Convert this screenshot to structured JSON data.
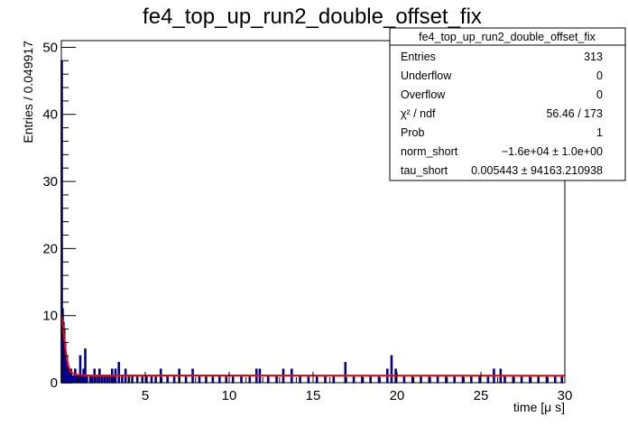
{
  "chart_data": {
    "type": "histogram",
    "title": "fe4_top_up_run2_double_offset_fix",
    "xlabel": "time [μ s]",
    "ylabel": "Entries / 0.049917",
    "xlim": [
      0,
      30
    ],
    "ylim": [
      0,
      51
    ],
    "bin_width": 0.049917,
    "x_ticks": [
      5,
      10,
      15,
      20,
      25,
      30
    ],
    "y_ticks": [
      0,
      10,
      20,
      30,
      40,
      50
    ],
    "grid": false,
    "histogram_color": "#00008b",
    "fit_color": "#ff0000",
    "bins": [
      {
        "x": 0.025,
        "y": 48
      },
      {
        "x": 0.075,
        "y": 11
      },
      {
        "x": 0.125,
        "y": 9
      },
      {
        "x": 0.175,
        "y": 8
      },
      {
        "x": 0.225,
        "y": 6
      },
      {
        "x": 0.275,
        "y": 4
      },
      {
        "x": 0.325,
        "y": 4
      },
      {
        "x": 0.375,
        "y": 3
      },
      {
        "x": 0.425,
        "y": 2
      },
      {
        "x": 0.475,
        "y": 2
      },
      {
        "x": 0.525,
        "y": 1
      },
      {
        "x": 0.575,
        "y": 2
      },
      {
        "x": 0.625,
        "y": 1
      },
      {
        "x": 0.725,
        "y": 1
      },
      {
        "x": 0.825,
        "y": 2
      },
      {
        "x": 0.925,
        "y": 1
      },
      {
        "x": 1.025,
        "y": 1
      },
      {
        "x": 1.125,
        "y": 4
      },
      {
        "x": 1.225,
        "y": 1
      },
      {
        "x": 1.325,
        "y": 2
      },
      {
        "x": 1.425,
        "y": 5
      },
      {
        "x": 1.525,
        "y": 1
      },
      {
        "x": 1.725,
        "y": 1
      },
      {
        "x": 1.825,
        "y": 1
      },
      {
        "x": 1.975,
        "y": 2
      },
      {
        "x": 2.125,
        "y": 1
      },
      {
        "x": 2.275,
        "y": 2
      },
      {
        "x": 2.425,
        "y": 1
      },
      {
        "x": 2.575,
        "y": 1
      },
      {
        "x": 2.725,
        "y": 1
      },
      {
        "x": 2.875,
        "y": 1
      },
      {
        "x": 3.025,
        "y": 2
      },
      {
        "x": 3.125,
        "y": 1
      },
      {
        "x": 3.225,
        "y": 2
      },
      {
        "x": 3.425,
        "y": 3
      },
      {
        "x": 3.625,
        "y": 1
      },
      {
        "x": 3.825,
        "y": 2
      },
      {
        "x": 4.025,
        "y": 1
      },
      {
        "x": 4.225,
        "y": 1
      },
      {
        "x": 4.525,
        "y": 1
      },
      {
        "x": 4.825,
        "y": 1
      },
      {
        "x": 5.075,
        "y": 1
      },
      {
        "x": 5.375,
        "y": 1
      },
      {
        "x": 5.625,
        "y": 1
      },
      {
        "x": 5.925,
        "y": 2
      },
      {
        "x": 6.325,
        "y": 1
      },
      {
        "x": 6.725,
        "y": 1
      },
      {
        "x": 7.025,
        "y": 2
      },
      {
        "x": 7.425,
        "y": 1
      },
      {
        "x": 7.825,
        "y": 2
      },
      {
        "x": 8.225,
        "y": 1
      },
      {
        "x": 8.625,
        "y": 1
      },
      {
        "x": 9.025,
        "y": 1
      },
      {
        "x": 9.425,
        "y": 1
      },
      {
        "x": 9.825,
        "y": 1
      },
      {
        "x": 10.225,
        "y": 1
      },
      {
        "x": 10.725,
        "y": 1
      },
      {
        "x": 11.225,
        "y": 1
      },
      {
        "x": 11.625,
        "y": 2
      },
      {
        "x": 11.825,
        "y": 2
      },
      {
        "x": 12.325,
        "y": 1
      },
      {
        "x": 12.825,
        "y": 1
      },
      {
        "x": 13.225,
        "y": 2
      },
      {
        "x": 13.725,
        "y": 2
      },
      {
        "x": 14.225,
        "y": 1
      },
      {
        "x": 14.725,
        "y": 1
      },
      {
        "x": 15.225,
        "y": 1
      },
      {
        "x": 15.725,
        "y": 1
      },
      {
        "x": 16.225,
        "y": 1
      },
      {
        "x": 16.925,
        "y": 3
      },
      {
        "x": 17.425,
        "y": 1
      },
      {
        "x": 17.925,
        "y": 1
      },
      {
        "x": 18.425,
        "y": 1
      },
      {
        "x": 18.925,
        "y": 1
      },
      {
        "x": 19.425,
        "y": 2
      },
      {
        "x": 19.675,
        "y": 4
      },
      {
        "x": 19.925,
        "y": 2
      },
      {
        "x": 20.425,
        "y": 1
      },
      {
        "x": 20.925,
        "y": 1
      },
      {
        "x": 21.425,
        "y": 1
      },
      {
        "x": 21.925,
        "y": 1
      },
      {
        "x": 22.425,
        "y": 1
      },
      {
        "x": 22.925,
        "y": 1
      },
      {
        "x": 23.425,
        "y": 1
      },
      {
        "x": 23.925,
        "y": 1
      },
      {
        "x": 24.425,
        "y": 1
      },
      {
        "x": 24.925,
        "y": 1
      },
      {
        "x": 25.425,
        "y": 1
      },
      {
        "x": 25.775,
        "y": 2
      },
      {
        "x": 26.175,
        "y": 2
      },
      {
        "x": 26.425,
        "y": 1
      },
      {
        "x": 26.925,
        "y": 1
      },
      {
        "x": 27.425,
        "y": 1
      },
      {
        "x": 27.925,
        "y": 1
      },
      {
        "x": 28.425,
        "y": 1
      },
      {
        "x": 28.925,
        "y": 1
      },
      {
        "x": 29.425,
        "y": 1
      },
      {
        "x": 29.825,
        "y": 1
      }
    ],
    "fit": {
      "x": [
        0.0,
        0.1,
        0.2,
        0.3,
        0.4,
        0.5,
        0.6,
        0.8,
        1.0,
        1.5,
        2.0,
        30.0
      ],
      "y": [
        10,
        8.5,
        6,
        4,
        2.6,
        1.9,
        1.5,
        1.25,
        1.15,
        1.1,
        1.08,
        1.05
      ]
    }
  },
  "stats": {
    "header": "fe4_top_up_run2_double_offset_fix",
    "rows": [
      {
        "label": "Entries",
        "value": "313"
      },
      {
        "label": "Underflow",
        "value": "0"
      },
      {
        "label": "Overflow",
        "value": "0"
      },
      {
        "label": "χ² / ndf",
        "value": "56.46 / 173"
      },
      {
        "label": "Prob",
        "value": "1"
      },
      {
        "label": "norm_short",
        "value": "−1.6e+04 ± 1.0e+00"
      },
      {
        "label": "tau_short",
        "value": "0.005443 ± 94163.210938"
      }
    ]
  }
}
